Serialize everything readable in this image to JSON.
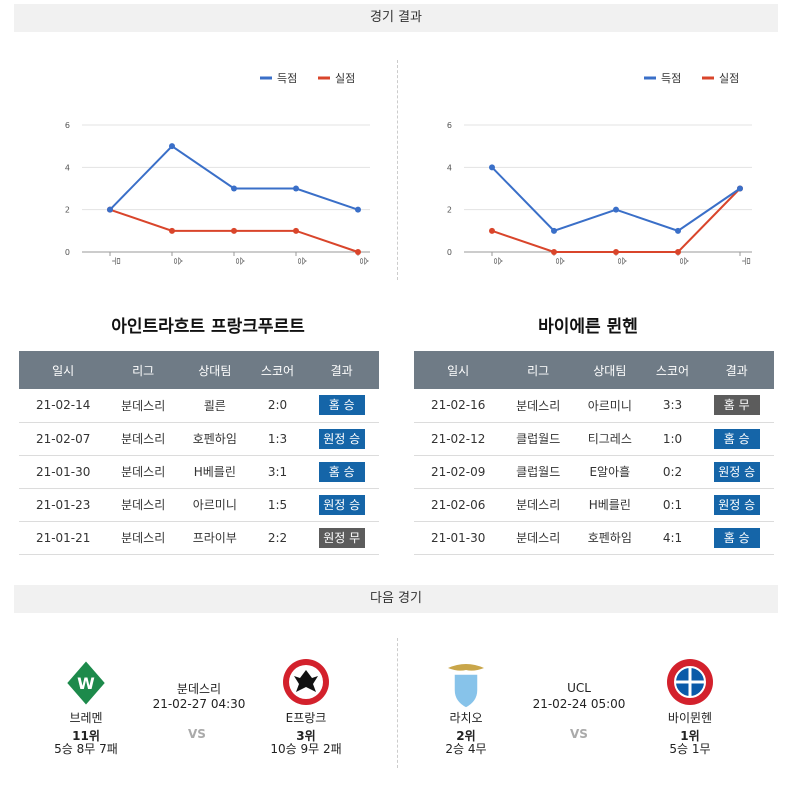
{
  "sections": {
    "results_title": "경기 결과",
    "next_title": "다음 경기"
  },
  "legend": {
    "scored": "득점",
    "conceded": "실점"
  },
  "colors": {
    "scored": "#3a6fc8",
    "conceded": "#d9452b",
    "header_bg": "#6f7b86",
    "badge_blue": "#1565a8",
    "badge_gray": "#5c5c5c"
  },
  "chart_data": [
    {
      "type": "line",
      "categories": [
        "무",
        "승",
        "승",
        "승",
        "승"
      ],
      "ylim": [
        0,
        6
      ],
      "yticks": [
        "0",
        "2",
        "4",
        "6"
      ],
      "series": [
        {
          "name": "득점",
          "values": [
            2,
            5,
            3,
            3,
            2
          ]
        },
        {
          "name": "실점",
          "values": [
            2,
            1,
            1,
            1,
            0
          ]
        }
      ],
      "legend_position": "top-right"
    },
    {
      "type": "line",
      "categories": [
        "승",
        "승",
        "승",
        "승",
        "무"
      ],
      "ylim": [
        0,
        6
      ],
      "yticks": [
        "0",
        "2",
        "4",
        "6"
      ],
      "series": [
        {
          "name": "득점",
          "values": [
            4,
            1,
            2,
            1,
            3
          ]
        },
        {
          "name": "실점",
          "values": [
            1,
            0,
            0,
            0,
            3
          ]
        }
      ],
      "legend_position": "top-right"
    }
  ],
  "teams": [
    {
      "name": "아인트라흐트 프랑크푸르트",
      "headers": [
        "일시",
        "리그",
        "상대팀",
        "스코어",
        "결과"
      ],
      "rows": [
        {
          "date": "21-02-14",
          "league": "분데스리",
          "opponent": "쾰른",
          "score": "2:0",
          "result": "홈 승",
          "color": "blue"
        },
        {
          "date": "21-02-07",
          "league": "분데스리",
          "opponent": "호펜하임",
          "score": "1:3",
          "result": "원정 승",
          "color": "blue"
        },
        {
          "date": "21-01-30",
          "league": "분데스리",
          "opponent": "H베를린",
          "score": "3:1",
          "result": "홈 승",
          "color": "blue"
        },
        {
          "date": "21-01-23",
          "league": "분데스리",
          "opponent": "아르미니",
          "score": "1:5",
          "result": "원정 승",
          "color": "blue"
        },
        {
          "date": "21-01-21",
          "league": "분데스리",
          "opponent": "프라이부",
          "score": "2:2",
          "result": "원정 무",
          "color": "gray"
        }
      ]
    },
    {
      "name": "바이에른 뮌헨",
      "headers": [
        "일시",
        "리그",
        "상대팀",
        "스코어",
        "결과"
      ],
      "rows": [
        {
          "date": "21-02-16",
          "league": "분데스리",
          "opponent": "아르미니",
          "score": "3:3",
          "result": "홈 무",
          "color": "gray"
        },
        {
          "date": "21-02-12",
          "league": "클럽월드",
          "opponent": "티그레스",
          "score": "1:0",
          "result": "홈 승",
          "color": "blue"
        },
        {
          "date": "21-02-09",
          "league": "클럽월드",
          "opponent": "E알아흘",
          "score": "0:2",
          "result": "원정 승",
          "color": "blue"
        },
        {
          "date": "21-02-06",
          "league": "분데스리",
          "opponent": "H베를린",
          "score": "0:1",
          "result": "원정 승",
          "color": "blue"
        },
        {
          "date": "21-01-30",
          "league": "분데스리",
          "opponent": "호펜하임",
          "score": "4:1",
          "result": "홈 승",
          "color": "blue"
        }
      ]
    }
  ],
  "next_matches": [
    {
      "league": "분데스리",
      "datetime": "21-02-27 04:30",
      "vs": "VS",
      "home": {
        "name": "브레멘",
        "rank": "11위",
        "record": "5승 8무 7패",
        "crest": "werder-bremen-crest"
      },
      "away": {
        "name": "E프랑크",
        "rank": "3위",
        "record": "10승 9무 2패",
        "crest": "eintracht-frankfurt-crest"
      }
    },
    {
      "league": "UCL",
      "datetime": "21-02-24 05:00",
      "vs": "VS",
      "home": {
        "name": "라치오",
        "rank": "2위",
        "record": "2승 4무",
        "crest": "lazio-crest"
      },
      "away": {
        "name": "바이뮌헨",
        "rank": "1위",
        "record": "5승 1무",
        "crest": "bayern-munich-crest"
      }
    }
  ]
}
